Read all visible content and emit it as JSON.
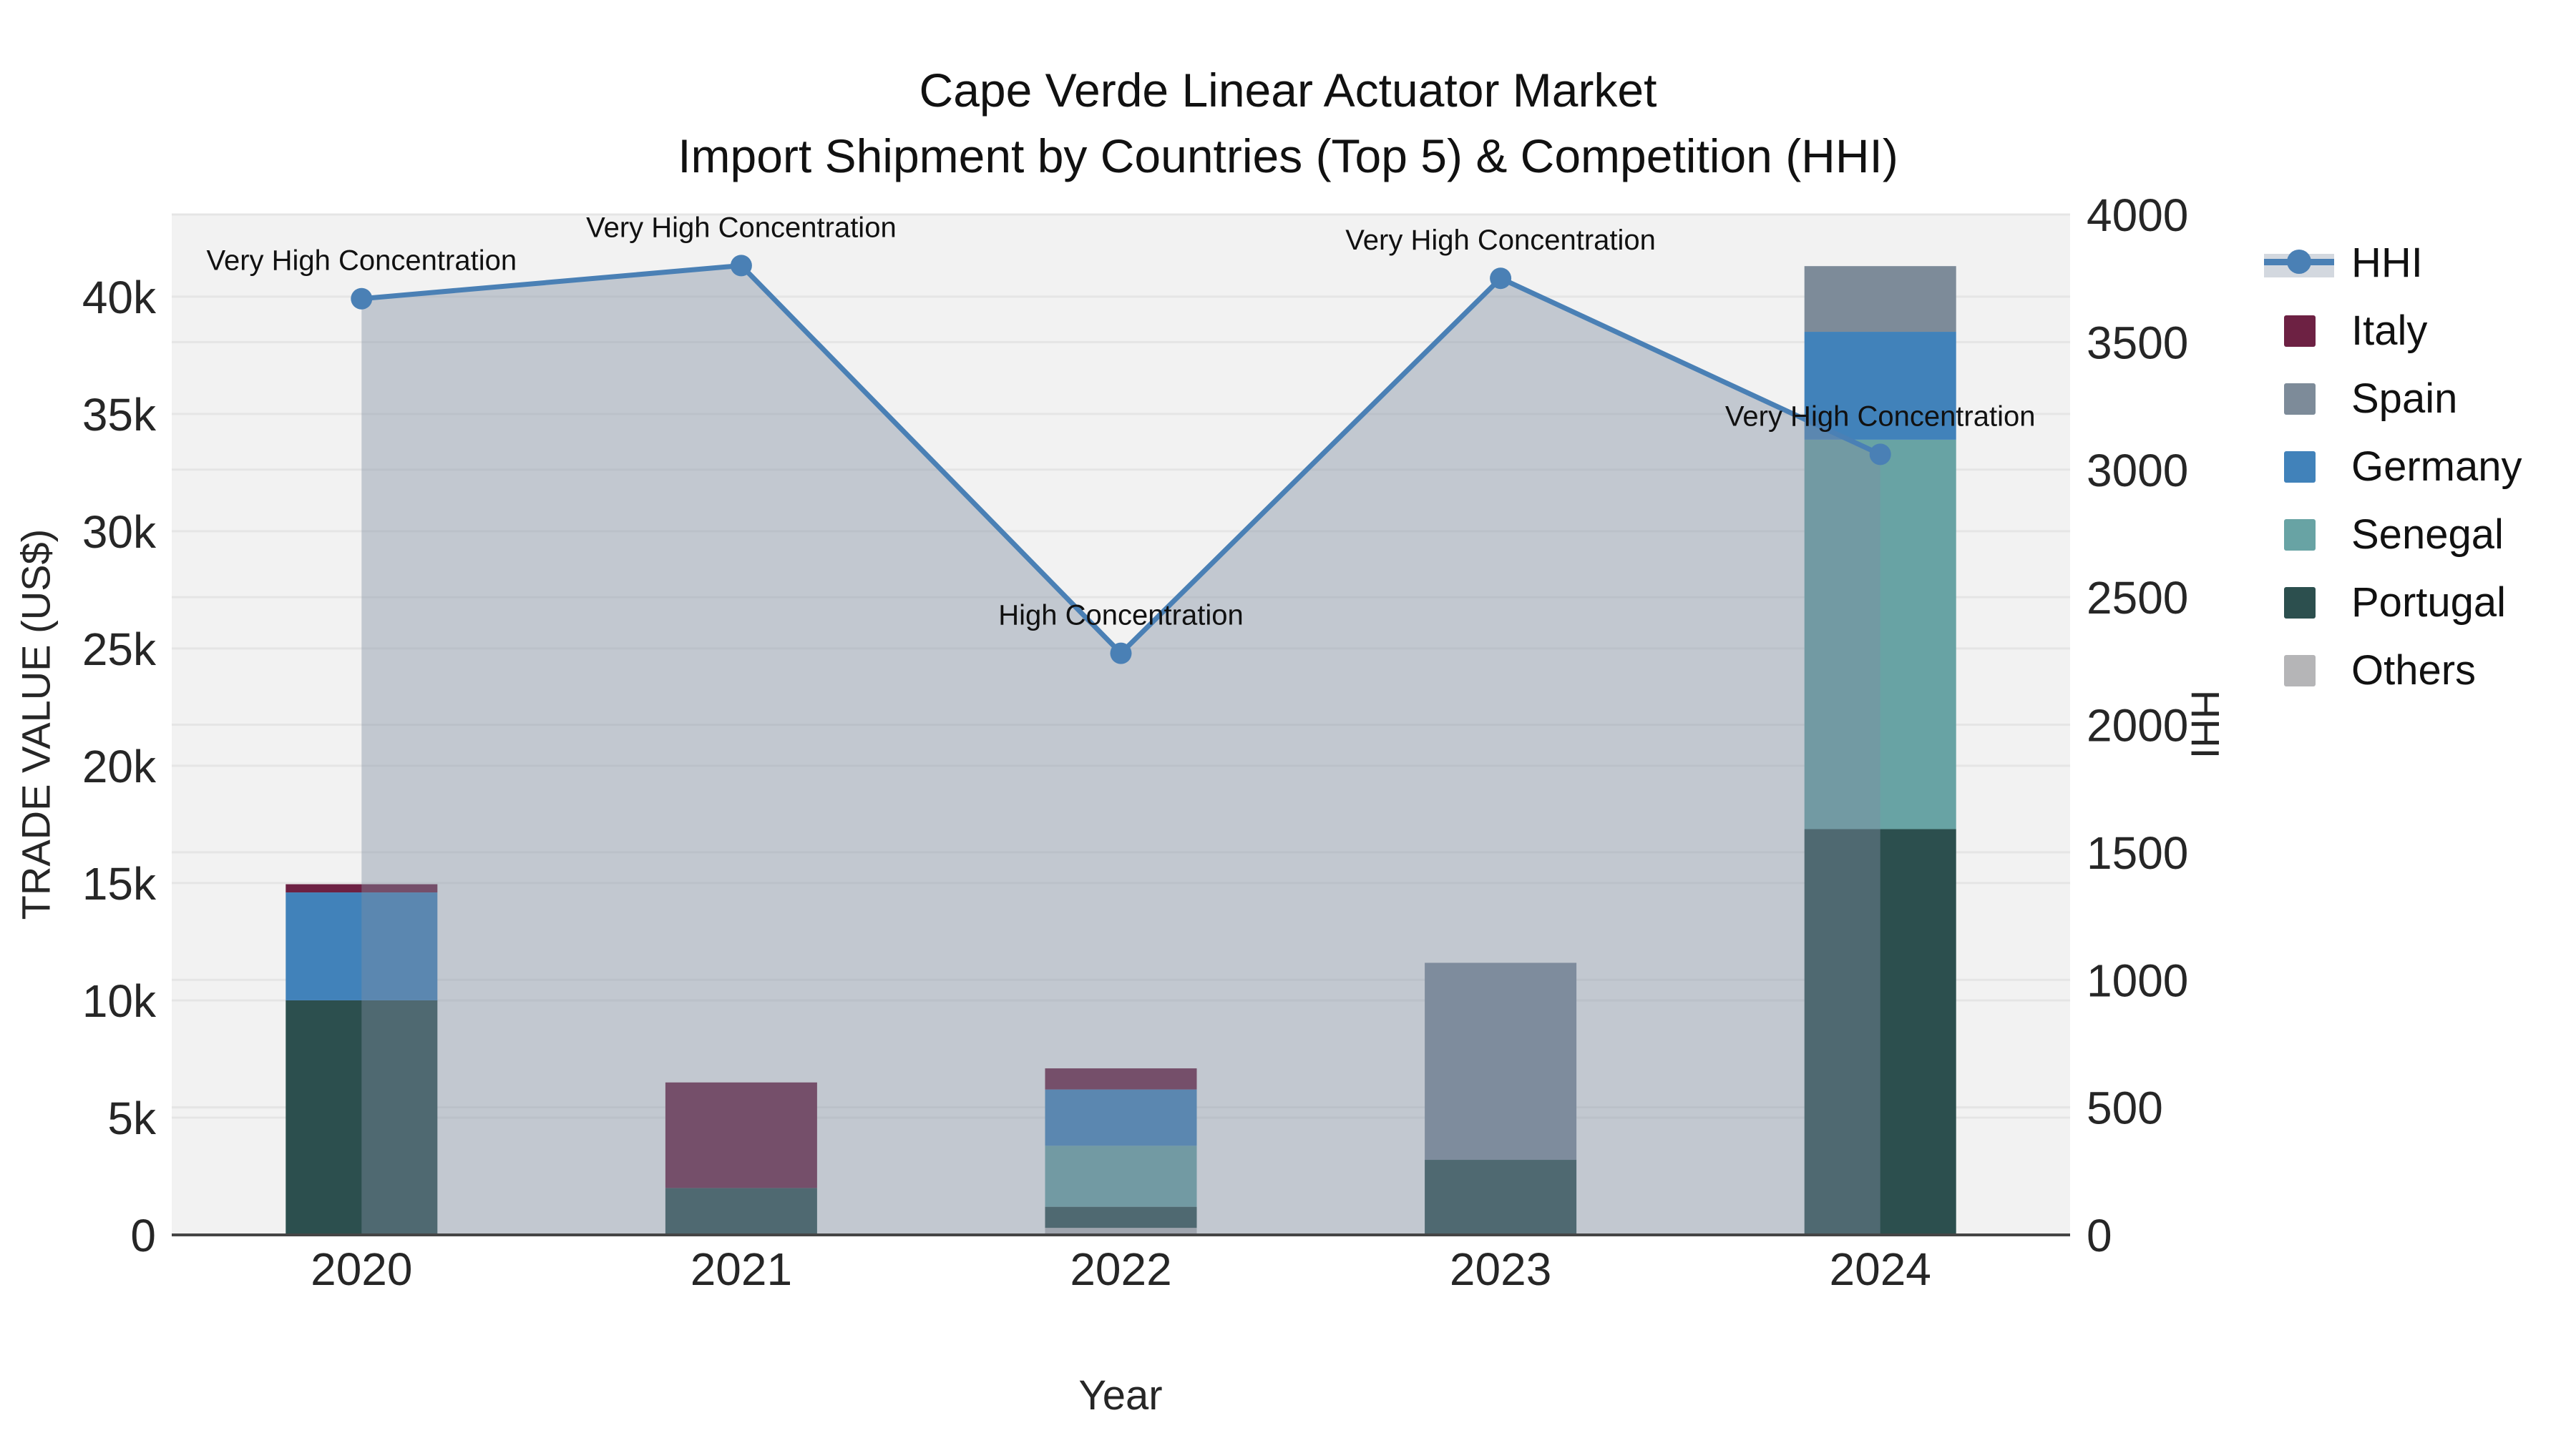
{
  "title": {
    "line1": "Cape Verde Linear Actuator Market",
    "line2": "Import Shipment by Countries (Top 5) & Competition (HHI)"
  },
  "axes": {
    "x_label": "Year",
    "y_left_label": "TRADE VALUE (US$)",
    "y_right_label": "HHI"
  },
  "legend": {
    "items": [
      {
        "label": "HHI",
        "type": "line",
        "color": "#4a80b5"
      },
      {
        "label": "Italy",
        "type": "swatch",
        "color": "#6d2143"
      },
      {
        "label": "Spain",
        "type": "swatch",
        "color": "#7d8b99"
      },
      {
        "label": "Germany",
        "type": "swatch",
        "color": "#4182ba"
      },
      {
        "label": "Senegal",
        "type": "swatch",
        "color": "#68a3a4"
      },
      {
        "label": "Portugal",
        "type": "swatch",
        "color": "#2c4f4e"
      },
      {
        "label": "Others",
        "type": "swatch",
        "color": "#b5b5b7"
      }
    ]
  },
  "colors": {
    "plot_bg": "#f2f2f2",
    "grid": "#e5e5e5",
    "axis_line": "#454545",
    "hhi_line": "#4a80b5",
    "area_fill": "rgba(128,143,163,0.42)",
    "legend_band": "#d3d8df",
    "text": "#262626"
  },
  "chart_data": {
    "type": "bar",
    "subtype": "stacked-bar-with-line",
    "title": "Cape Verde Linear Actuator Market\nImport Shipment by Countries (Top 5) & Competition (HHI)",
    "xlabel": "Year",
    "ylabel": "TRADE VALUE (US$)",
    "ylabel_right": "HHI",
    "categories": [
      "2020",
      "2021",
      "2022",
      "2023",
      "2024"
    ],
    "stack_order_bottom_to_top": [
      "Others",
      "Portugal",
      "Senegal",
      "Germany",
      "Spain",
      "Italy"
    ],
    "series": [
      {
        "name": "Italy",
        "color": "#6d2143",
        "values": [
          350,
          4500,
          900,
          0,
          0
        ]
      },
      {
        "name": "Spain",
        "color": "#7d8b99",
        "values": [
          0,
          0,
          0,
          8400,
          2800
        ]
      },
      {
        "name": "Germany",
        "color": "#4182ba",
        "values": [
          4600,
          0,
          2400,
          0,
          4600
        ]
      },
      {
        "name": "Senegal",
        "color": "#68a3a4",
        "values": [
          0,
          0,
          2600,
          0,
          16600
        ]
      },
      {
        "name": "Portugal",
        "color": "#2c4f4e",
        "values": [
          10000,
          2000,
          900,
          3200,
          17300
        ]
      },
      {
        "name": "Others",
        "color": "#b5b5b7",
        "values": [
          0,
          0,
          300,
          0,
          0
        ]
      }
    ],
    "bar_totals": [
      14950,
      6500,
      7100,
      11600,
      41300
    ],
    "line_series": {
      "name": "HHI",
      "axis": "right",
      "color": "#4a80b5",
      "area_fill": "rgba(128,143,163,0.42)",
      "values": [
        3670,
        3800,
        2280,
        3750,
        3060
      ]
    },
    "annotations": [
      {
        "category": "2020",
        "text": "Very High Concentration"
      },
      {
        "category": "2021",
        "text": "Very High Concentration"
      },
      {
        "category": "2022",
        "text": "High Concentration"
      },
      {
        "category": "2023",
        "text": "Very High Concentration"
      },
      {
        "category": "2024",
        "text": "Very High Concentration"
      }
    ],
    "ylim_left": [
      0,
      43500
    ],
    "ylim_right": [
      0,
      4000
    ],
    "yticks_left": {
      "values": [
        0,
        5000,
        10000,
        15000,
        20000,
        25000,
        30000,
        35000,
        40000
      ],
      "labels": [
        "0",
        "5k",
        "10k",
        "15k",
        "20k",
        "25k",
        "30k",
        "35k",
        "40k"
      ]
    },
    "yticks_right": {
      "values": [
        0,
        500,
        1000,
        1500,
        2000,
        2500,
        3000,
        3500,
        4000
      ],
      "labels": [
        "0",
        "500",
        "1000",
        "1500",
        "2000",
        "2500",
        "3000",
        "3500",
        "4000"
      ]
    },
    "grid": true,
    "legend_position": "right"
  }
}
